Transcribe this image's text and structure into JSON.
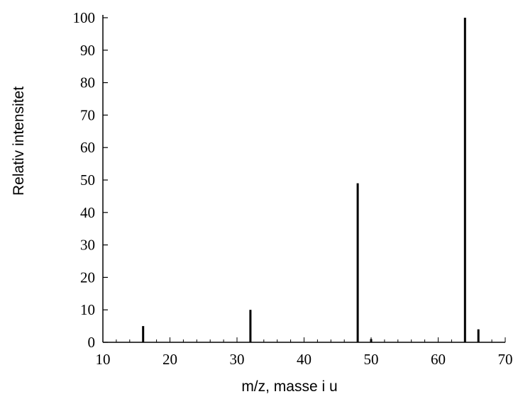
{
  "chart_data": {
    "type": "bar",
    "title": "",
    "xlabel": "m/z, masse i u",
    "ylabel": "Relativ intensitet",
    "xlim": [
      10,
      70
    ],
    "ylim": [
      0,
      100
    ],
    "x_ticks": [
      10,
      20,
      30,
      40,
      50,
      60,
      70
    ],
    "y_ticks": [
      0,
      10,
      20,
      30,
      40,
      50,
      60,
      70,
      80,
      90,
      100
    ],
    "x_minor_step": 2,
    "grid": false,
    "peaks": [
      {
        "mz": 16,
        "intensity": 5
      },
      {
        "mz": 32,
        "intensity": 10
      },
      {
        "mz": 48,
        "intensity": 49
      },
      {
        "mz": 50,
        "intensity": 1
      },
      {
        "mz": 64,
        "intensity": 100
      },
      {
        "mz": 66,
        "intensity": 4
      }
    ],
    "bar_color": "#000000",
    "axis_color": "#000000"
  }
}
